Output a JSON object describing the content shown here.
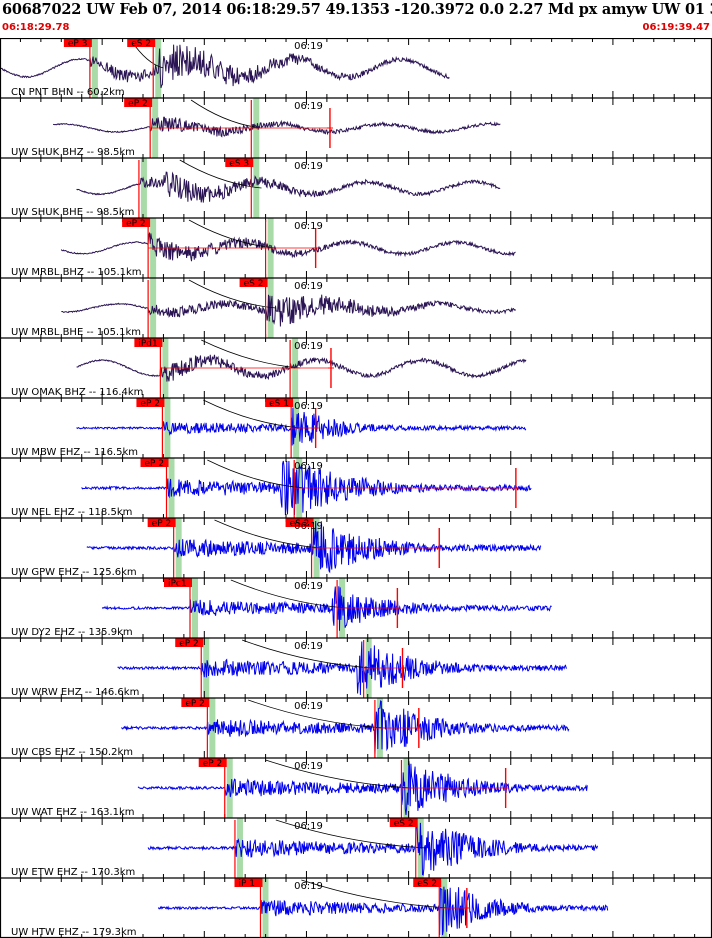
{
  "header": {
    "title": "60687022 UW Feb 07, 2014 06:18:29.57    49.1353 -120.3972  0.0 2.27 Md px amyw UW 01   3",
    "start_time": "06:18:29.78",
    "end_time": "06:19:39.47"
  },
  "colors": {
    "long_period_trace": "#2a1454",
    "short_period_trace": "#0000ee",
    "pick_flag": "#ff0000",
    "phase_window": "#a8dba8",
    "border": "#000000"
  },
  "chart_data": {
    "type": "line",
    "title": "",
    "xlabel": "",
    "ylabel": "",
    "time_mark": "06:19",
    "time_mark_offset_s": 30.2,
    "xlim_s": [
      0,
      69.7
    ],
    "grid": false,
    "legend": "none",
    "traces": [
      {
        "label": "CN PNT BHN -- 60.2km",
        "kind": "long",
        "start": 0,
        "end": 44.0,
        "p": {
          "name": "eP 3",
          "t": 8.8
        },
        "s": {
          "name": "eS 2",
          "t": 15.0
        },
        "amp": 18,
        "sig": {
          "t": 15.5,
          "dur": 22,
          "gain": 1.3
        },
        "lp": 0.9,
        "seed": 11
      },
      {
        "label": "UW SHUK BHZ -- 98.5km",
        "kind": "long",
        "start": 5.2,
        "end": 49.0,
        "p": {
          "name": "eP 2",
          "t": 14.7
        },
        "s": {
          "name": "",
          "t": 24.6
        },
        "amp": 12,
        "sig": {
          "t": 14.7,
          "dur": 25,
          "gain": 0.8
        },
        "lp": 0.6,
        "tail": {
          "t": 32.3,
          "end": 33.5
        },
        "seed": 23
      },
      {
        "label": "UW SHUK BHE -- 98.5km",
        "kind": "long",
        "start": 7.5,
        "end": 49.0,
        "p": {
          "name": "",
          "t": 13.6
        },
        "s": {
          "name": "eS 3",
          "t": 24.6
        },
        "amp": 14,
        "sig": {
          "t": 16,
          "dur": 22,
          "gain": 1.1
        },
        "lp": 0.8,
        "seed": 37
      },
      {
        "label": "UW MRBL BHZ -- 105.1km",
        "kind": "long",
        "start": 6.0,
        "end": 50.5,
        "p": {
          "name": "eP 2",
          "t": 14.5
        },
        "s": {
          "name": "",
          "t": 26.0
        },
        "amp": 13,
        "sig": {
          "t": 14.5,
          "dur": 26,
          "gain": 1.0
        },
        "lp": 0.8,
        "tail": {
          "t": 30.9,
          "end": 32.0
        },
        "seed": 41
      },
      {
        "label": "UW MRBL BHE -- 105.1km",
        "kind": "long",
        "start": 6.0,
        "end": 50.5,
        "p": {
          "name": "",
          "t": 14.5
        },
        "s": {
          "name": "eS 2",
          "t": 26.0
        },
        "amp": 15,
        "sig": {
          "t": 26.0,
          "dur": 20,
          "gain": 1.4
        },
        "lp": 0.5,
        "seed": 53
      },
      {
        "label": "UW OMAK BHZ -- 116.4km",
        "kind": "long",
        "start": 7.5,
        "end": 51.5,
        "p": {
          "name": "iPd1",
          "t": 15.7
        },
        "s": {
          "name": "",
          "t": 28.4
        },
        "amp": 14,
        "sig": {
          "t": 15.7,
          "dur": 24,
          "gain": 0.8
        },
        "lp": 1.0,
        "tail": {
          "t": 32.4,
          "end": 33.4
        },
        "seed": 67
      },
      {
        "label": "UW MBW EHZ -- 116.5km",
        "kind": "short",
        "start": 7.5,
        "end": 51.5,
        "p": {
          "name": "eP 2",
          "t": 15.9
        },
        "s": {
          "name": "eS 1",
          "t": 28.5
        },
        "amp": 15,
        "sig": {
          "t": 28.5,
          "dur": 10,
          "gain": 1.6
        },
        "tail": {
          "t": 30.9,
          "end": 32.0
        },
        "seed": 71
      },
      {
        "label": "UW NEL EHZ -- 118.5km",
        "kind": "short",
        "start": 8.0,
        "end": 52.0,
        "p": {
          "name": "eP 2",
          "t": 16.3
        },
        "s": {
          "name": "",
          "t": 28.8
        },
        "amp": 22,
        "sig": {
          "t": 27.5,
          "dur": 14,
          "gain": 1.6
        },
        "tail": {
          "t": 50.5,
          "end": 51.5
        },
        "seed": 83
      },
      {
        "label": "UW GPW EHZ -- 125.6km",
        "kind": "short",
        "start": 8.5,
        "end": 53.0,
        "p": {
          "name": "eP 2",
          "t": 17.0
        },
        "s": {
          "name": "eS 2",
          "t": 30.5
        },
        "amp": 22,
        "sig": {
          "t": 30.5,
          "dur": 12,
          "gain": 1.6
        },
        "tail": {
          "t": 43.0,
          "end": 44.0
        },
        "seed": 97
      },
      {
        "label": "UW DY2 EHZ -- 135.9km",
        "kind": "short",
        "start": 10.0,
        "end": 54.0,
        "p": {
          "name": "iPc1",
          "t": 18.6
        },
        "s": {
          "name": "",
          "t": 33.0
        },
        "amp": 20,
        "sig": {
          "t": 32.5,
          "dur": 12,
          "gain": 1.3
        },
        "tail": {
          "t": 38.9,
          "end": 40.0
        },
        "seed": 103
      },
      {
        "label": "UW WRW EHZ -- 146.6km",
        "kind": "short",
        "start": 11.5,
        "end": 55.5,
        "p": {
          "name": "eP 2",
          "t": 19.7
        },
        "s": {
          "name": "",
          "t": 35.6
        },
        "amp": 22,
        "sig": {
          "t": 35.0,
          "dur": 12,
          "gain": 1.4
        },
        "tail": {
          "t": 39.4,
          "end": 40.4
        },
        "seed": 109
      },
      {
        "label": "UW CBS EHZ -- 150.2km",
        "kind": "short",
        "start": 11.9,
        "end": 55.7,
        "p": {
          "name": "eP 2",
          "t": 20.3
        },
        "s": {
          "name": "",
          "t": 36.7
        },
        "amp": 22,
        "sig": {
          "t": 36.7,
          "dur": 12,
          "gain": 1.5
        },
        "tail": {
          "t": 41.0,
          "end": 42.0
        },
        "seed": 127
      },
      {
        "label": "UW WAT EHZ -- 163.1km",
        "kind": "short",
        "start": 13.5,
        "end": 57.5,
        "p": {
          "name": "eP 2",
          "t": 22.0
        },
        "s": {
          "name": "",
          "t": 39.3
        },
        "amp": 22,
        "sig": {
          "t": 39.3,
          "dur": 12,
          "gain": 1.5
        },
        "tail": {
          "t": 49.5,
          "end": 50.5
        },
        "seed": 131
      },
      {
        "label": "UW ETW EHZ -- 170.3km",
        "kind": "short",
        "start": 14.5,
        "end": 58.5,
        "p": {
          "name": "",
          "t": 23.0
        },
        "s": {
          "name": "eS 2",
          "t": 40.7
        },
        "amp": 22,
        "sig": {
          "t": 40.7,
          "dur": 12,
          "gain": 1.6
        },
        "seed": 139
      },
      {
        "label": "UW HTW EHZ -- 179.3km",
        "kind": "short",
        "start": 15.5,
        "end": 59.5,
        "p": {
          "name": "iP 1",
          "t": 25.5
        },
        "s": {
          "name": "eS 2",
          "t": 43.0
        },
        "amp": 20,
        "sig": {
          "t": 43.0,
          "dur": 10,
          "gain": 1.6
        },
        "tail": {
          "t": 45.7,
          "end": 46.7
        },
        "seed": 149
      }
    ]
  }
}
